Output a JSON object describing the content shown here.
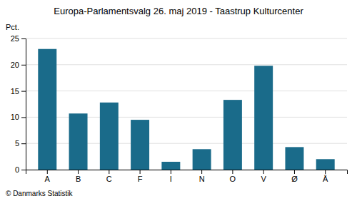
{
  "chart_data": {
    "type": "bar",
    "title": "Europa-Parlamentsvalg 26. maj 2019 - Taastrup Kulturcenter",
    "ylabel": "Pct.",
    "footer": "© Danmarks Statistik",
    "categories": [
      "A",
      "B",
      "C",
      "F",
      "I",
      "N",
      "O",
      "V",
      "Ø",
      "Å"
    ],
    "values": [
      23.0,
      10.7,
      12.8,
      9.5,
      1.5,
      3.9,
      13.3,
      19.8,
      4.3,
      2.0
    ],
    "color": "#1a6b8a",
    "ylim": [
      0,
      25
    ],
    "yticks": [
      0,
      5,
      10,
      15,
      20,
      25
    ],
    "grid": true
  }
}
